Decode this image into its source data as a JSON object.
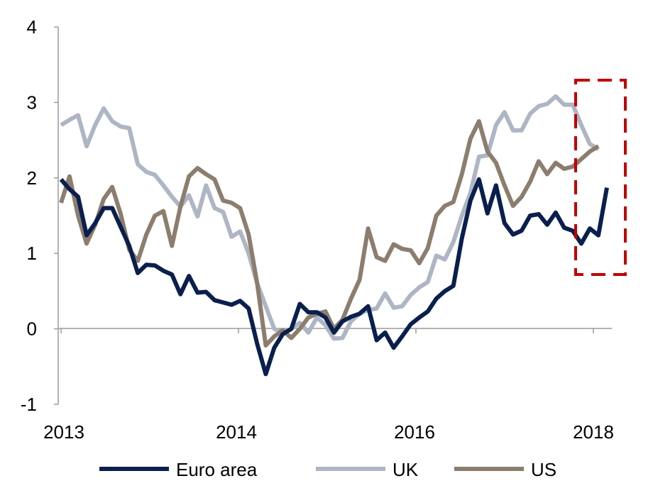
{
  "chart_data": {
    "type": "line",
    "title": "",
    "xlabel": "",
    "ylabel": "",
    "x_tick_labels": [
      "2013",
      "2014",
      "2016",
      "2018"
    ],
    "y_ticks": [
      -1,
      0,
      1,
      2,
      3,
      4
    ],
    "ylim": [
      -1,
      4
    ],
    "grid": false,
    "legend_position": "bottom",
    "annotation": "red dashed box highlighting the most recent observations",
    "series": [
      {
        "name": "Euro area",
        "color": "#0a1f4d",
        "values": [
          1.98,
          1.85,
          1.75,
          1.24,
          1.4,
          1.6,
          1.6,
          1.35,
          1.1,
          0.74,
          0.85,
          0.84,
          0.77,
          0.72,
          0.46,
          0.7,
          0.48,
          0.49,
          0.38,
          0.35,
          0.32,
          0.37,
          0.27,
          -0.2,
          -0.6,
          -0.25,
          -0.07,
          0.0,
          0.33,
          0.22,
          0.22,
          0.15,
          -0.05,
          0.1,
          0.16,
          0.2,
          0.3,
          -0.15,
          -0.05,
          -0.25,
          -0.1,
          0.06,
          0.15,
          0.23,
          0.4,
          0.5,
          0.57,
          1.2,
          1.7,
          1.98,
          1.53,
          1.9,
          1.4,
          1.25,
          1.3,
          1.5,
          1.52,
          1.38,
          1.54,
          1.34,
          1.3,
          1.13,
          1.33,
          1.24,
          1.87
        ]
      },
      {
        "name": "UK",
        "color": "#aeb5c4",
        "values": [
          2.7,
          2.77,
          2.83,
          2.42,
          2.7,
          2.92,
          2.75,
          2.68,
          2.66,
          2.18,
          2.08,
          2.04,
          1.9,
          1.75,
          1.62,
          1.77,
          1.49,
          1.9,
          1.6,
          1.55,
          1.22,
          1.29,
          1.0,
          0.6,
          0.3,
          0.0,
          -0.05,
          0.0,
          0.08,
          -0.05,
          0.15,
          0.05,
          -0.13,
          -0.12,
          0.1,
          0.2,
          0.25,
          0.27,
          0.47,
          0.28,
          0.3,
          0.45,
          0.55,
          0.62,
          0.97,
          0.92,
          1.15,
          1.5,
          1.8,
          2.28,
          2.3,
          2.7,
          2.87,
          2.63,
          2.63,
          2.85,
          2.95,
          2.98,
          3.08,
          2.97,
          2.97,
          2.7,
          2.45,
          2.38
        ]
      },
      {
        "name": "US",
        "color": "#8c7e6e",
        "values": [
          1.67,
          2.02,
          1.5,
          1.13,
          1.38,
          1.72,
          1.88,
          1.52,
          1.05,
          0.9,
          1.25,
          1.5,
          1.56,
          1.1,
          1.62,
          2.02,
          2.13,
          2.05,
          1.98,
          1.7,
          1.67,
          1.6,
          1.25,
          0.6,
          -0.22,
          -0.1,
          -0.02,
          -0.12,
          0.0,
          0.15,
          0.2,
          0.23,
          0.0,
          0.12,
          0.4,
          0.65,
          1.33,
          0.95,
          0.9,
          1.12,
          1.06,
          1.04,
          0.87,
          1.07,
          1.5,
          1.63,
          1.68,
          2.05,
          2.52,
          2.75,
          2.35,
          2.2,
          1.9,
          1.63,
          1.75,
          1.95,
          2.22,
          2.05,
          2.2,
          2.12,
          2.15,
          2.25,
          2.35,
          2.42
        ]
      }
    ]
  }
}
